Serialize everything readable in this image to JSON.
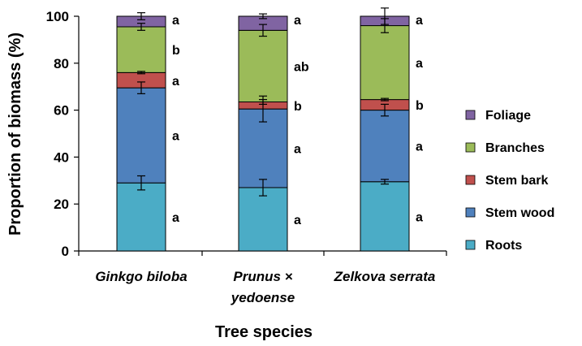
{
  "chart_data": {
    "type": "bar",
    "stacked": true,
    "xlabel": "Tree species",
    "ylabel": "Proportion of biomass (%)",
    "ylim": [
      0,
      100
    ],
    "yticks": [
      0,
      20,
      40,
      60,
      80,
      100
    ],
    "categories": [
      [
        "Ginkgo biloba"
      ],
      [
        "Prunus ×",
        "yedoense"
      ],
      [
        "Zelkova serrata"
      ]
    ],
    "series": [
      {
        "name": "Roots",
        "color": "#4bacc6",
        "values": [
          29,
          27,
          29.5
        ],
        "errors": [
          3,
          3.5,
          1
        ],
        "letters": [
          "a",
          "a",
          "a"
        ]
      },
      {
        "name": "Stem wood",
        "color": "#4f81bd",
        "values": [
          40.5,
          33.5,
          30.5
        ],
        "errors": [
          2.5,
          5.5,
          2.5
        ],
        "letters": [
          "a",
          "a",
          "a"
        ]
      },
      {
        "name": "Stem bark",
        "color": "#c0504d",
        "values": [
          6.5,
          3,
          4.5
        ],
        "errors": [
          0.5,
          1,
          0.5
        ],
        "letters": [
          "a",
          "b",
          "b"
        ]
      },
      {
        "name": "Branches",
        "color": "#9bbb59",
        "values": [
          19.5,
          30.5,
          31.5
        ],
        "errors": [
          1.5,
          2.5,
          3
        ],
        "letters": [
          "b",
          "ab",
          "a"
        ]
      },
      {
        "name": "Foliage",
        "color": "#8064a2",
        "values": [
          4.5,
          6,
          4
        ],
        "errors": [
          1.5,
          1,
          3.5
        ],
        "letters": [
          "a",
          "a",
          "a"
        ]
      }
    ],
    "legend_position": "right"
  }
}
